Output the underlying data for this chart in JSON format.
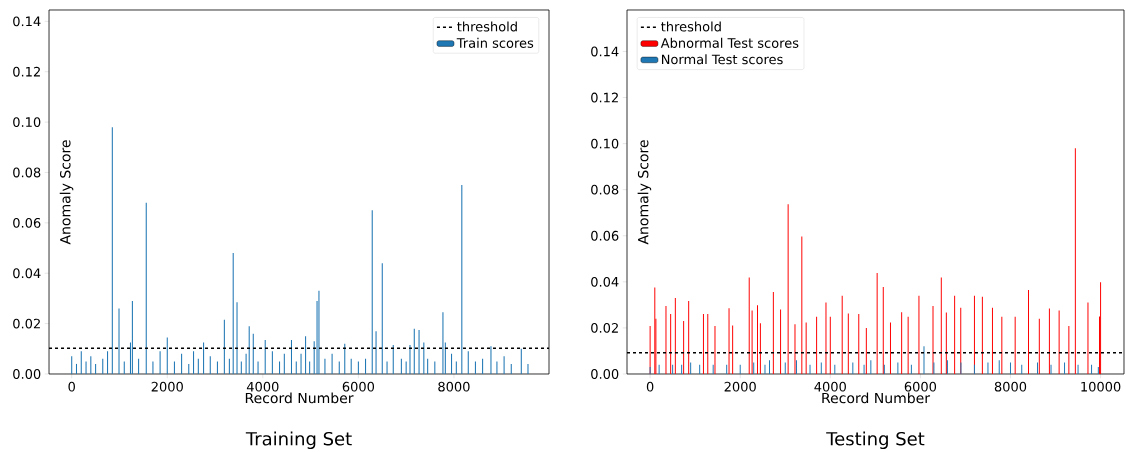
{
  "chart_data": [
    {
      "type": "bar",
      "title": "Training Set",
      "xlabel": "Record Number",
      "ylabel": "Anomaly Score",
      "xlim": [
        -475,
        9990
      ],
      "ylim": [
        0,
        0.1445
      ],
      "xticks": [
        0,
        2000,
        4000,
        6000,
        8000
      ],
      "yticks": [
        {
          "value": 0,
          "label": "0.00"
        },
        {
          "value": 0.02,
          "label": "0.02"
        },
        {
          "value": 0.04,
          "label": "0.04"
        },
        {
          "value": 0.06,
          "label": "0.06"
        },
        {
          "value": 0.08,
          "label": "0.08"
        },
        {
          "value": 0.1,
          "label": "0.10"
        },
        {
          "value": 0.12,
          "label": "0.12"
        },
        {
          "value": 0.14,
          "label": "0.14"
        }
      ],
      "legend": "top right",
      "grid": false,
      "ref_lines": [
        {
          "axis": "y",
          "value": 0.0102,
          "label": "threshold",
          "color": "#000000",
          "line_style": "dashed"
        }
      ],
      "series": [
        {
          "name": "Train scores",
          "color": "#1f77b4",
          "x": [
            0,
            100,
            200,
            300,
            400,
            500,
            650,
            750,
            850,
            990,
            1100,
            1230,
            1270,
            1400,
            1560,
            1700,
            1850,
            2000,
            2150,
            2300,
            2450,
            2550,
            2650,
            2760,
            2900,
            3050,
            3195,
            3300,
            3380,
            3460,
            3550,
            3650,
            3715,
            3800,
            3900,
            4050,
            4200,
            4350,
            4450,
            4600,
            4700,
            4800,
            4895,
            4980,
            5075,
            5135,
            5175,
            5300,
            5450,
            5600,
            5715,
            5850,
            6000,
            6150,
            6290,
            6370,
            6500,
            6600,
            6730,
            6900,
            7000,
            7080,
            7170,
            7270,
            7370,
            7450,
            7600,
            7770,
            7820,
            7950,
            8050,
            8165,
            8300,
            8450,
            8600,
            8775,
            8900,
            9050,
            9200,
            9410,
            9550
          ],
          "values": [
            0.007,
            0.004,
            0.009,
            0.005,
            0.007,
            0.004,
            0.006,
            0.009,
            0.098,
            0.026,
            0.005,
            0.0125,
            0.029,
            0.006,
            0.068,
            0.005,
            0.009,
            0.0145,
            0.005,
            0.008,
            0.004,
            0.009,
            0.006,
            0.0125,
            0.007,
            0.005,
            0.0215,
            0.006,
            0.048,
            0.0285,
            0.005,
            0.008,
            0.019,
            0.016,
            0.005,
            0.0135,
            0.009,
            0.005,
            0.008,
            0.0135,
            0.005,
            0.008,
            0.015,
            0.005,
            0.013,
            0.029,
            0.033,
            0.006,
            0.008,
            0.005,
            0.012,
            0.006,
            0.005,
            0.006,
            0.065,
            0.017,
            0.044,
            0.005,
            0.0115,
            0.006,
            0.005,
            0.0115,
            0.018,
            0.0175,
            0.0125,
            0.006,
            0.005,
            0.0245,
            0.0125,
            0.008,
            0.005,
            0.075,
            0.009,
            0.005,
            0.006,
            0.011,
            0.005,
            0.007,
            0.004,
            0.01,
            0.004
          ]
        }
      ]
    },
    {
      "type": "bar",
      "title": "Testing Set",
      "xlabel": "Record Number",
      "ylabel": "Anomaly Score",
      "xlim": [
        -513,
        10520
      ],
      "ylim": [
        0,
        0.158
      ],
      "xticks": [
        0,
        2000,
        4000,
        6000,
        8000,
        10000
      ],
      "yticks": [
        {
          "value": 0,
          "label": "0.00"
        },
        {
          "value": 0.02,
          "label": "0.02"
        },
        {
          "value": 0.04,
          "label": "0.04"
        },
        {
          "value": 0.06,
          "label": "0.06"
        },
        {
          "value": 0.08,
          "label": "0.08"
        },
        {
          "value": 0.1,
          "label": "0.10"
        },
        {
          "value": 0.12,
          "label": "0.12"
        },
        {
          "value": 0.14,
          "label": "0.14"
        }
      ],
      "legend": "top left",
      "grid": false,
      "ref_lines": [
        {
          "axis": "y",
          "value": 0.0092,
          "label": "threshold",
          "color": "#000000",
          "line_style": "dashed"
        }
      ],
      "series": [
        {
          "name": "Abnormal Test scores",
          "color": "#ff0000",
          "x": [
            0,
            104,
            128,
            352,
            456,
            560,
            744,
            856,
            1184,
            1280,
            1440,
            1752,
            1832,
            2200,
            2264,
            2384,
            2448,
            2736,
            2896,
            3064,
            3216,
            3368,
            3464,
            3696,
            3904,
            4000,
            4264,
            4400,
            4632,
            4800,
            5040,
            5176,
            5336,
            5584,
            5728,
            5968,
            6280,
            6464,
            6576,
            6760,
            6896,
            7200,
            7376,
            7600,
            7808,
            8104,
            8400,
            8640,
            8864,
            9080,
            9296,
            9440,
            9720,
            9976,
            10000
          ],
          "values": [
            0.0208,
            0.0375,
            0.024,
            0.0295,
            0.026,
            0.033,
            0.023,
            0.0317,
            0.026,
            0.026,
            0.0208,
            0.0285,
            0.021,
            0.0419,
            0.0276,
            0.0298,
            0.022,
            0.0356,
            0.028,
            0.0737,
            0.0216,
            0.0597,
            0.0224,
            0.0248,
            0.031,
            0.0248,
            0.034,
            0.0263,
            0.026,
            0.02,
            0.0438,
            0.0378,
            0.0224,
            0.0268,
            0.0248,
            0.034,
            0.0295,
            0.0419,
            0.0267,
            0.034,
            0.0287,
            0.034,
            0.0335,
            0.0287,
            0.0248,
            0.0248,
            0.0365,
            0.024,
            0.0284,
            0.0276,
            0.0208,
            0.098,
            0.031,
            0.025,
            0.0398
          ]
        },
        {
          "name": "Normal Test scores",
          "color": "#1f77b4",
          "x": [
            0,
            200,
            500,
            700,
            900,
            1100,
            1400,
            1700,
            2000,
            2300,
            2550,
            2650,
            3000,
            3250,
            3550,
            3800,
            4100,
            4500,
            4750,
            4900,
            5200,
            5500,
            5800,
            6080,
            6300,
            6600,
            6900,
            7200,
            7500,
            7750,
            8000,
            8250,
            8600,
            8900,
            9200,
            9500,
            9800,
            9950
          ],
          "values": [
            0.003,
            0.004,
            0.004,
            0.004,
            0.005,
            0.004,
            0.004,
            0.004,
            0.004,
            0.005,
            0.004,
            0.006,
            0.005,
            0.006,
            0.004,
            0.005,
            0.004,
            0.005,
            0.004,
            0.006,
            0.004,
            0.005,
            0.004,
            0.012,
            0.005,
            0.006,
            0.005,
            0.004,
            0.005,
            0.006,
            0.005,
            0.004,
            0.005,
            0.004,
            0.005,
            0.004,
            0.004,
            0.003
          ]
        }
      ]
    }
  ]
}
